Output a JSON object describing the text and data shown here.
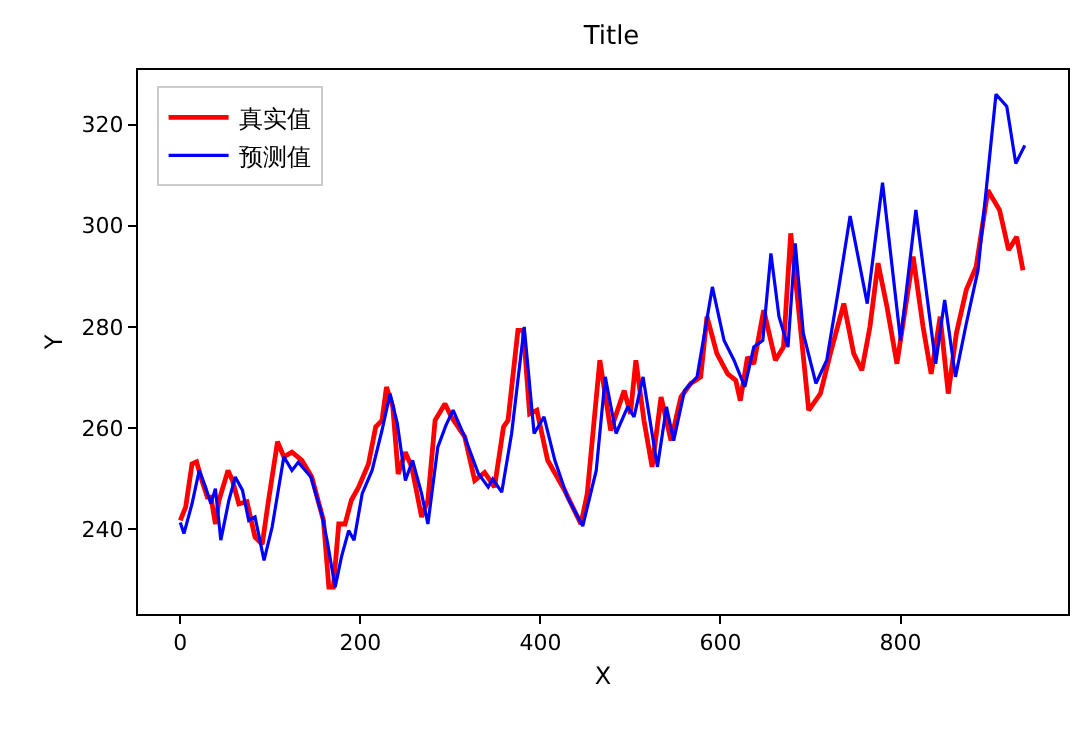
{
  "chart_data": {
    "type": "line",
    "title": "Title",
    "xlabel": "X",
    "ylabel": "Y",
    "xlim": [
      -47,
      986
    ],
    "ylim": [
      223.2,
      330.8
    ],
    "xticks": [
      0,
      200,
      400,
      600,
      800
    ],
    "yticks": [
      240,
      260,
      280,
      300,
      320
    ],
    "grid": false,
    "legend": "top left",
    "line_style": "solid",
    "marker": "none",
    "series": [
      {
        "name": "真实值",
        "color": "#ff0000",
        "x": [
          0,
          6,
          13,
          18,
          24,
          30,
          34,
          39,
          43,
          53,
          58,
          65,
          74,
          83,
          91,
          98,
          108,
          115,
          124,
          135,
          146,
          154,
          159,
          165,
          170,
          176,
          183,
          190,
          198,
          209,
          217,
          224,
          229,
          236,
          242,
          250,
          257,
          268,
          275,
          283,
          294,
          301,
          316,
          327,
          338,
          349,
          359,
          364,
          375,
          381,
          388,
          396,
          408,
          427,
          445,
          452,
          466,
          478,
          493,
          500,
          506,
          515,
          524,
          534,
          545,
          556,
          567,
          578,
          585,
          596,
          608,
          617,
          622,
          630,
          637,
          648,
          661,
          670,
          678,
          685,
          698,
          711,
          722,
          737,
          748,
          757,
          766,
          775,
          785,
          796,
          805,
          814,
          825,
          834,
          844,
          853,
          862,
          873,
          884,
          897,
          910,
          920,
          929,
          936
        ],
        "values": [
          241.7,
          244.4,
          252.9,
          253.3,
          249.6,
          246.3,
          246.3,
          241,
          245.7,
          251.6,
          249.6,
          245,
          245.4,
          238.4,
          237,
          245.7,
          257.3,
          254.3,
          255.2,
          253.6,
          250.3,
          245,
          241.7,
          228.5,
          228.5,
          241,
          241,
          245.7,
          248.3,
          252.9,
          260.2,
          261.5,
          268.1,
          264.2,
          250.9,
          255.2,
          252.3,
          242.4,
          245.7,
          261.5,
          264.8,
          262.2,
          258.2,
          249.6,
          251.2,
          248.3,
          260.2,
          261.5,
          279.3,
          279.3,
          262.8,
          263.5,
          253.6,
          247.6,
          241,
          247,
          273.4,
          259.5,
          267.4,
          262.8,
          273.4,
          261.5,
          252.3,
          266.1,
          257.5,
          266.1,
          268.8,
          270.1,
          282,
          274.7,
          270.7,
          269.4,
          265.4,
          274,
          272.7,
          283.3,
          273.4,
          276,
          298.5,
          286.6,
          263.5,
          266.8,
          274.7,
          284.6,
          274.7,
          271.4,
          280,
          292.6,
          283.9,
          272.7,
          283.3,
          293.9,
          280,
          270.7,
          282,
          266.8,
          278.7,
          287.3,
          291.9,
          307,
          303.1,
          295.2,
          297.8,
          291.2
        ]
      },
      {
        "name": "预测值",
        "color": "#0000ff",
        "x": [
          0,
          4,
          13,
          21,
          28,
          34,
          39,
          45,
          54,
          61,
          69,
          76,
          83,
          93,
          102,
          115,
          124,
          131,
          145,
          157,
          163,
          172,
          179,
          187,
          193,
          202,
          213,
          224,
          233,
          241,
          250,
          258,
          268,
          275,
          286,
          295,
          303,
          316,
          331,
          342,
          347,
          357,
          368,
          382,
          393,
          404,
          416,
          430,
          447,
          462,
          472,
          484,
          497,
          504,
          514,
          530,
          540,
          548,
          560,
          574,
          591,
          604,
          615,
          627,
          637,
          647,
          656,
          665,
          675,
          683,
          692,
          706,
          718,
          731,
          744,
          763,
          780,
          800,
          817,
          839,
          849,
          861,
          873,
          886,
          906,
          918,
          928,
          938
        ],
        "values": [
          241.3,
          239.1,
          245,
          251.6,
          248.3,
          245,
          248,
          237.8,
          245.7,
          250.3,
          247.7,
          241.7,
          242.4,
          233.8,
          240.4,
          254.3,
          251.6,
          253.2,
          250.3,
          243,
          237.8,
          228.5,
          234.5,
          239.7,
          237.8,
          247,
          251.6,
          259.5,
          266.8,
          260.9,
          249.6,
          253.6,
          247,
          241,
          256.2,
          260.5,
          263.5,
          258.2,
          251,
          248.3,
          249.9,
          247.3,
          258.9,
          280,
          258.9,
          262.2,
          253.6,
          246.3,
          240.6,
          251.6,
          270.1,
          258.9,
          264.2,
          262.2,
          270.1,
          252.3,
          264.2,
          257.5,
          267.4,
          270.1,
          287.9,
          277.3,
          273.4,
          268.1,
          276,
          277.3,
          294.5,
          282,
          276,
          296.5,
          278.7,
          268.8,
          273.4,
          287.3,
          301.9,
          284.6,
          308.5,
          277.3,
          303.1,
          272.7,
          285.3,
          270.1,
          280.6,
          291.2,
          326,
          323.6,
          312.3,
          315.9
        ]
      }
    ]
  }
}
